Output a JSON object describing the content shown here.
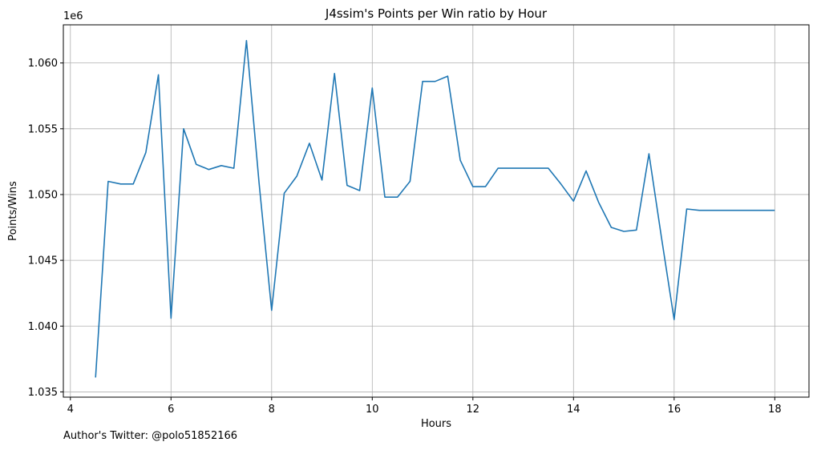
{
  "chart_data": {
    "type": "line",
    "title": "J4ssim's Points per Win ratio by Hour",
    "xlabel": "Hours",
    "ylabel": "Points/Wins",
    "y_offset_label": "1e6",
    "xlim": [
      3.86,
      18.68
    ],
    "ylim": [
      1.0346,
      1.0629
    ],
    "x_ticks": [
      4,
      6,
      8,
      10,
      12,
      14,
      16,
      18
    ],
    "y_ticks": [
      1.035,
      1.04,
      1.045,
      1.05,
      1.055,
      1.06
    ],
    "y_tick_labels": [
      "1.035",
      "1.040",
      "1.045",
      "1.050",
      "1.055",
      "1.060"
    ],
    "grid": true,
    "line_color": "#1f77b4",
    "series": [
      {
        "x": [
          4.5,
          4.75,
          5.0,
          5.25,
          5.5,
          5.75,
          6.0,
          6.25,
          6.5,
          6.75,
          7.0,
          7.25,
          7.5,
          7.75,
          8.0,
          8.25,
          8.5,
          8.75,
          9.0,
          9.25,
          9.5,
          9.75,
          10.0,
          10.25,
          10.5,
          10.75,
          11.0,
          11.25,
          11.5,
          11.75,
          12.0,
          12.25,
          12.5,
          12.75,
          13.0,
          13.25,
          13.5,
          13.75,
          14.0,
          14.25,
          14.5,
          14.75,
          15.0,
          15.25,
          15.5,
          15.75,
          16.0,
          16.25,
          16.5,
          16.75,
          17.0,
          17.25,
          17.5,
          17.75,
          18.0
        ],
        "y": [
          1.0361,
          1.051,
          1.0508,
          1.0508,
          1.0532,
          1.0591,
          1.0406,
          1.055,
          1.0523,
          1.0519,
          1.0522,
          1.052,
          1.0617,
          1.0509,
          1.0412,
          1.0501,
          1.0514,
          1.0539,
          1.0511,
          1.0592,
          1.0507,
          1.0503,
          1.0581,
          1.0498,
          1.0498,
          1.051,
          1.0586,
          1.0586,
          1.059,
          1.0526,
          1.0506,
          1.0506,
          1.052,
          1.052,
          1.052,
          1.052,
          1.052,
          1.0508,
          1.0495,
          1.0518,
          1.0494,
          1.0475,
          1.0472,
          1.0473,
          1.0531,
          1.0467,
          1.0405,
          1.0489,
          1.0488,
          1.0488,
          1.0488,
          1.0488,
          1.0488,
          1.0488,
          1.0488
        ]
      }
    ]
  },
  "footer": {
    "text": "Author's Twitter: @polo51852166"
  }
}
